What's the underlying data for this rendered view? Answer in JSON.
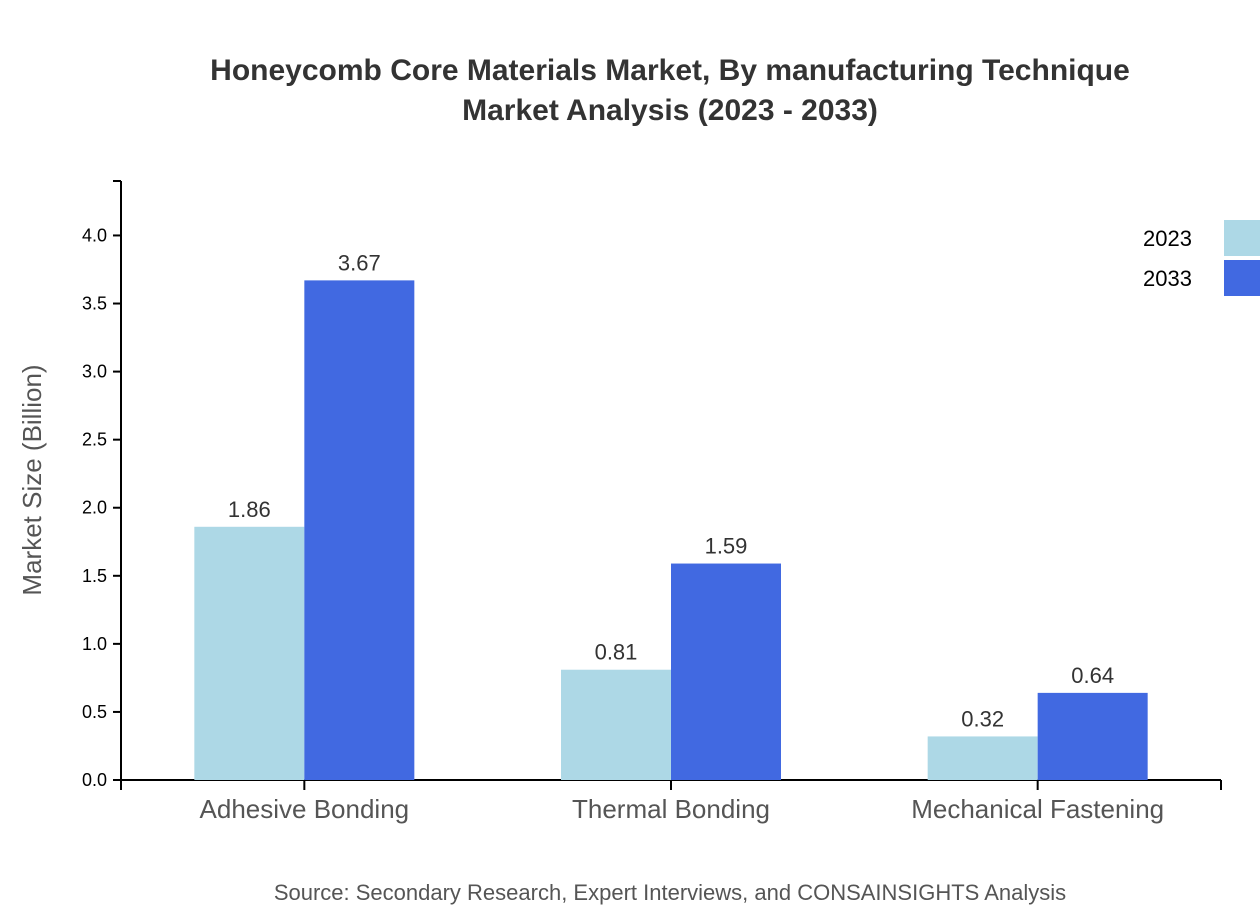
{
  "chart_data": {
    "type": "bar",
    "title": "Honeycomb Core Materials Market, By manufacturing Technique",
    "subtitle": "Market Analysis (2023 - 2033)",
    "ylabel": "Market Size (Billion)",
    "xlabel": "",
    "ylim": [
      0,
      4.4
    ],
    "yticks": [
      "0.0",
      "0.5",
      "1.0",
      "1.5",
      "2.0",
      "2.5",
      "3.0",
      "3.5",
      "4.0"
    ],
    "categories": [
      "Adhesive Bonding",
      "Thermal Bonding",
      "Mechanical Fastening"
    ],
    "series": [
      {
        "name": "2023",
        "color": "#ADD8E6",
        "values": [
          1.86,
          0.81,
          0.32
        ],
        "labels": [
          "1.86",
          "0.81",
          "0.32"
        ]
      },
      {
        "name": "2033",
        "color": "#4169E1",
        "values": [
          3.67,
          1.59,
          0.64
        ],
        "labels": [
          "3.67",
          "1.59",
          "0.64"
        ]
      }
    ],
    "legend_position": "top-right",
    "grid": false,
    "source": "Source: Secondary Research, Expert Interviews, and CONSAINSIGHTS Analysis"
  }
}
